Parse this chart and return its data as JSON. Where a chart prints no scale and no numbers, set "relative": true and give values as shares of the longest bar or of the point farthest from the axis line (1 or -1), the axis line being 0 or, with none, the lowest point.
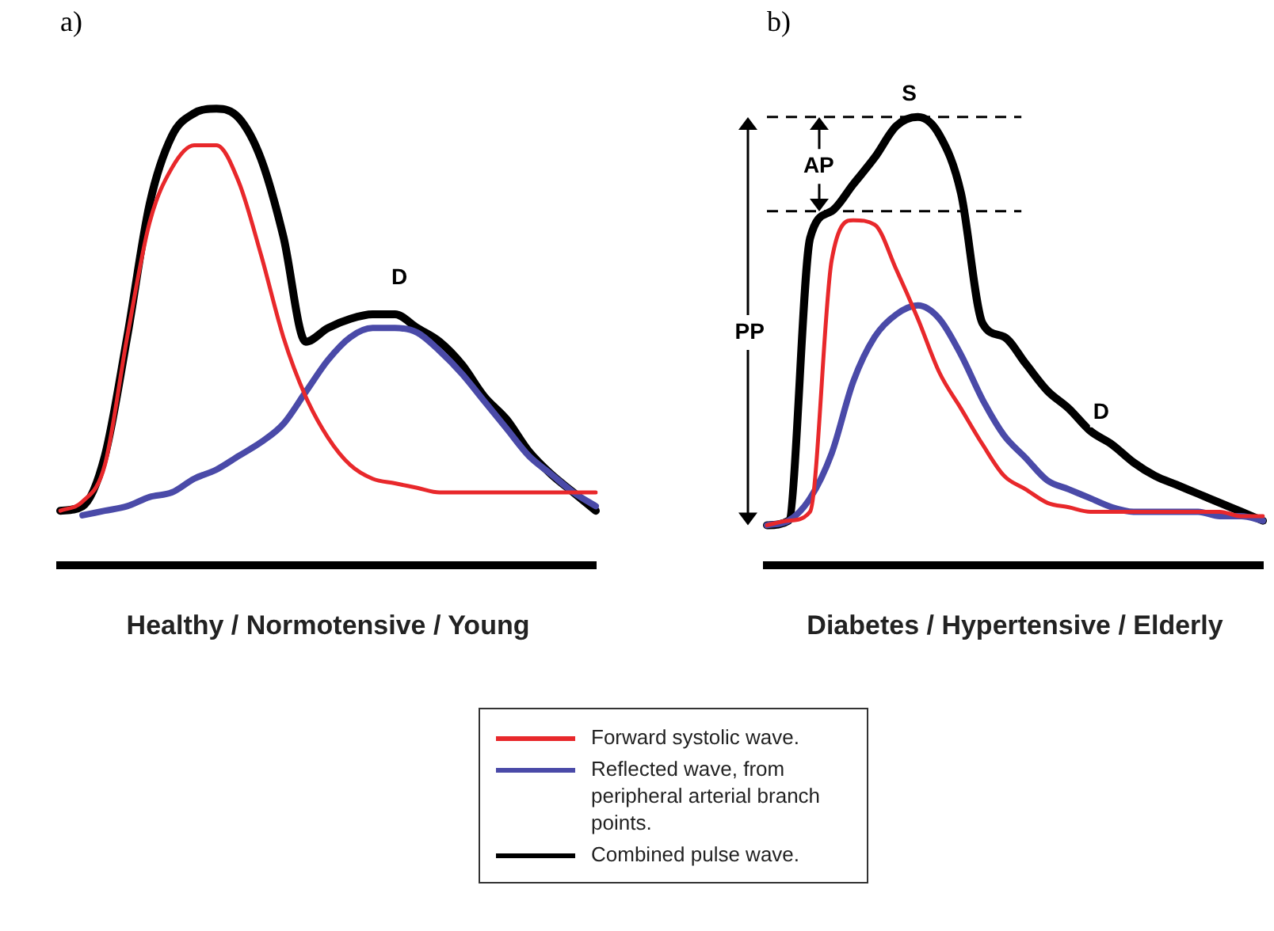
{
  "chart_data": [
    {
      "type": "line",
      "title": "a)",
      "xlabel": "Healthy / Normotensive / Young",
      "relative": true,
      "marker": "none",
      "grid": false,
      "categories": [
        null,
        null,
        null,
        null,
        null,
        null,
        null,
        null,
        null,
        null,
        null,
        null,
        null,
        null,
        null,
        null,
        null,
        null,
        null,
        null,
        null,
        null,
        null,
        null,
        null
      ],
      "series": [
        {
          "color": "#e8282b",
          "values": [
            0.12,
            0.14,
            0.22,
            0.5,
            0.75,
            0.87,
            0.92,
            0.92,
            0.84,
            0.68,
            0.5,
            0.37,
            0.28,
            0.22,
            0.19,
            0.18,
            0.17,
            0.16,
            0.16,
            0.16,
            0.16,
            0.16,
            0.16,
            0.16,
            0.16
          ]
        },
        {
          "color": "#4a4aa8",
          "values": [
            null,
            0.11,
            0.12,
            0.13,
            0.15,
            0.16,
            0.19,
            0.21,
            0.24,
            0.27,
            0.31,
            0.38,
            0.45,
            0.5,
            0.52,
            0.52,
            0.51,
            0.47,
            0.42,
            0.36,
            0.3,
            0.24,
            0.2,
            0.16,
            0.13
          ]
        },
        {
          "color": "#000000",
          "values": [
            0.12,
            0.13,
            0.24,
            0.5,
            0.79,
            0.94,
            0.99,
            1.0,
            0.98,
            0.89,
            0.72,
            0.49,
            0.52,
            0.54,
            0.55,
            0.55,
            0.52,
            0.49,
            0.44,
            0.37,
            0.32,
            0.25,
            0.2,
            0.16,
            0.12
          ]
        }
      ],
      "annotations": [
        "D"
      ]
    },
    {
      "type": "line",
      "title": "b)",
      "xlabel": "Diabetes / Hypertensive / Elderly",
      "relative": true,
      "marker": "none",
      "grid": false,
      "legend": "bottom",
      "categories": [
        null,
        null,
        null,
        null,
        null,
        null,
        null,
        null,
        null,
        null,
        null,
        null,
        null,
        null,
        null,
        null,
        null,
        null,
        null,
        null,
        null,
        null,
        null,
        null
      ],
      "series": [
        {
          "name": "Forward systolic wave.",
          "color": "#e8282b",
          "values": [
            0.09,
            0.1,
            0.12,
            0.68,
            0.77,
            0.76,
            0.66,
            0.55,
            0.43,
            0.35,
            0.27,
            0.2,
            0.17,
            0.14,
            0.13,
            0.12,
            0.12,
            0.12,
            0.12,
            0.12,
            0.12,
            0.12,
            0.11,
            0.11
          ]
        },
        {
          "name": "Reflected wave, from peripheral arterial branch points.",
          "color": "#4a4aa8",
          "values": [
            0.09,
            0.1,
            0.15,
            0.25,
            0.41,
            0.51,
            0.56,
            0.58,
            0.55,
            0.47,
            0.37,
            0.29,
            0.24,
            0.19,
            0.17,
            0.15,
            0.13,
            0.12,
            0.12,
            0.12,
            0.12,
            0.11,
            0.11,
            0.1
          ]
        },
        {
          "name": "Combined pulse wave.",
          "color": "#000000",
          "values": [
            0.09,
            0.1,
            0.73,
            0.79,
            0.85,
            0.91,
            0.98,
            1.0,
            0.96,
            0.83,
            0.54,
            0.51,
            0.45,
            0.39,
            0.35,
            0.3,
            0.27,
            0.23,
            0.2,
            0.18,
            0.16,
            0.14,
            0.12,
            0.1
          ]
        }
      ],
      "ref_lines": [
        {
          "axis": "y",
          "value": 1.0,
          "color": "#000000",
          "line_style": "dashed"
        },
        {
          "axis": "y",
          "value": 0.79,
          "color": "#000000",
          "line_style": "dashed"
        }
      ],
      "annotations": [
        "S",
        "AP",
        "PP",
        "D"
      ]
    }
  ]
}
